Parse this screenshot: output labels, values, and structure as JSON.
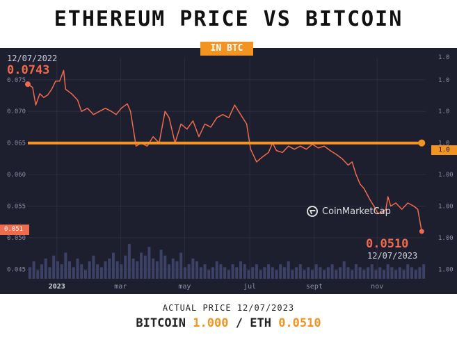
{
  "header": {
    "title": "ETHEREUM PRICE VS BITCOIN",
    "subtitle": "IN BTC"
  },
  "readouts": {
    "start_date": "12/07/2022",
    "start_value": "0.0743",
    "end_value": "0.0510",
    "end_date": "12/07/2023",
    "current_tag": "0.051",
    "reference_tag": "1.0"
  },
  "watermark": "CoinMarketCap",
  "footer": {
    "line1": "ACTUAL PRICE 12/07/2023",
    "btc_label": "BITCOIN",
    "btc_value": "1.000",
    "separator": "/",
    "eth_label": "ETH",
    "eth_value": "0.0510"
  },
  "colors": {
    "background": "#1d1e2e",
    "eth_line": "#ee6b4d",
    "btc_line": "#f39322",
    "volume": "#3b4266",
    "grid": "#2c2d40"
  },
  "chart_data": {
    "type": "line",
    "title": "ETHEREUM PRICE VS BITCOIN",
    "subtitle": "IN BTC",
    "xlabel": "",
    "ylabel": "",
    "x_tick_labels": [
      {
        "label": "2023",
        "x": 0.073
      },
      {
        "label": "mar",
        "x": 0.233
      },
      {
        "label": "may",
        "x": 0.394
      },
      {
        "label": "jul",
        "x": 0.558
      },
      {
        "label": "sept",
        "x": 0.72
      },
      {
        "label": "nov",
        "x": 0.878
      }
    ],
    "y_ticks_left": [
      "0.075",
      "0.070",
      "0.065",
      "0.060",
      "0.055",
      "0.050",
      "0.045"
    ],
    "y_ticks_right": [
      "1.0",
      "1.0",
      "1.0",
      "1.00",
      "1.00",
      "1.00",
      "1.00"
    ],
    "ylim": [
      0.0435,
      0.0785
    ],
    "xlim": [
      0,
      1
    ],
    "grid": true,
    "series": [
      {
        "name": "ETH",
        "color": "#ee6b4d",
        "points": [
          [
            0.0,
            0.0743
          ],
          [
            0.012,
            0.0738
          ],
          [
            0.02,
            0.071
          ],
          [
            0.03,
            0.0728
          ],
          [
            0.04,
            0.0722
          ],
          [
            0.05,
            0.0726
          ],
          [
            0.06,
            0.0735
          ],
          [
            0.07,
            0.0748
          ],
          [
            0.08,
            0.0748
          ],
          [
            0.09,
            0.0765
          ],
          [
            0.095,
            0.0735
          ],
          [
            0.11,
            0.0728
          ],
          [
            0.125,
            0.0718
          ],
          [
            0.135,
            0.07
          ],
          [
            0.15,
            0.0705
          ],
          [
            0.165,
            0.0695
          ],
          [
            0.18,
            0.07
          ],
          [
            0.195,
            0.0705
          ],
          [
            0.21,
            0.07
          ],
          [
            0.222,
            0.0695
          ],
          [
            0.235,
            0.0705
          ],
          [
            0.25,
            0.0712
          ],
          [
            0.258,
            0.07
          ],
          [
            0.272,
            0.0645
          ],
          [
            0.285,
            0.065
          ],
          [
            0.3,
            0.0645
          ],
          [
            0.315,
            0.066
          ],
          [
            0.33,
            0.065
          ],
          [
            0.345,
            0.07
          ],
          [
            0.355,
            0.069
          ],
          [
            0.37,
            0.065
          ],
          [
            0.385,
            0.068
          ],
          [
            0.4,
            0.0672
          ],
          [
            0.415,
            0.0685
          ],
          [
            0.43,
            0.066
          ],
          [
            0.445,
            0.068
          ],
          [
            0.46,
            0.0675
          ],
          [
            0.475,
            0.069
          ],
          [
            0.49,
            0.0695
          ],
          [
            0.505,
            0.069
          ],
          [
            0.52,
            0.071
          ],
          [
            0.535,
            0.0695
          ],
          [
            0.55,
            0.068
          ],
          [
            0.56,
            0.064
          ],
          [
            0.575,
            0.062
          ],
          [
            0.59,
            0.0628
          ],
          [
            0.605,
            0.0635
          ],
          [
            0.615,
            0.065
          ],
          [
            0.625,
            0.0638
          ],
          [
            0.64,
            0.0635
          ],
          [
            0.655,
            0.0645
          ],
          [
            0.67,
            0.064
          ],
          [
            0.685,
            0.0645
          ],
          [
            0.7,
            0.064
          ],
          [
            0.715,
            0.0648
          ],
          [
            0.73,
            0.0642
          ],
          [
            0.745,
            0.0645
          ],
          [
            0.76,
            0.0638
          ],
          [
            0.775,
            0.0632
          ],
          [
            0.79,
            0.0625
          ],
          [
            0.805,
            0.0615
          ],
          [
            0.815,
            0.062
          ],
          [
            0.825,
            0.06
          ],
          [
            0.835,
            0.0585
          ],
          [
            0.845,
            0.0578
          ],
          [
            0.86,
            0.056
          ],
          [
            0.87,
            0.055
          ],
          [
            0.88,
            0.0538
          ],
          [
            0.89,
            0.054
          ],
          [
            0.9,
            0.0545
          ],
          [
            0.905,
            0.0565
          ],
          [
            0.912,
            0.055
          ],
          [
            0.925,
            0.0555
          ],
          [
            0.94,
            0.0545
          ],
          [
            0.955,
            0.0555
          ],
          [
            0.97,
            0.055
          ],
          [
            0.98,
            0.0545
          ],
          [
            0.99,
            0.051
          ]
        ]
      },
      {
        "name": "BTC",
        "color": "#f39322",
        "points": [
          [
            0.0,
            0.065
          ],
          [
            0.99,
            0.065
          ]
        ]
      }
    ],
    "volume_bars": [
      4,
      6,
      3,
      5,
      7,
      4,
      8,
      6,
      5,
      9,
      6,
      4,
      7,
      5,
      3,
      6,
      8,
      5,
      4,
      6,
      7,
      9,
      6,
      5,
      8,
      12,
      7,
      6,
      9,
      8,
      11,
      7,
      6,
      10,
      8,
      5,
      7,
      6,
      9,
      4,
      5,
      7,
      6,
      4,
      5,
      3,
      4,
      6,
      5,
      4,
      3,
      5,
      4,
      6,
      5,
      3,
      4,
      5,
      3,
      4,
      5,
      4,
      3,
      5,
      4,
      6,
      3,
      4,
      5,
      3,
      4,
      3,
      5,
      4,
      3,
      4,
      5,
      3,
      4,
      6,
      4,
      3,
      5,
      4,
      3,
      4,
      5,
      3,
      4,
      3,
      5,
      4,
      3,
      4,
      3,
      5,
      4,
      3,
      4,
      5
    ]
  }
}
